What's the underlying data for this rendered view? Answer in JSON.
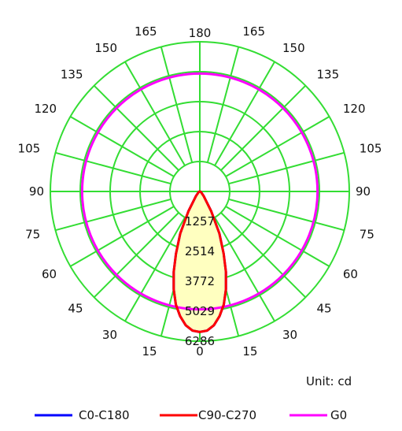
{
  "chart_data": {
    "type": "polar",
    "unit_label": "Unit: cd",
    "radial_ticks": [
      "1257",
      "2514",
      "3772",
      "5029",
      "6286"
    ],
    "radial_tick_values": [
      1257,
      2514,
      3772,
      5029,
      6286
    ],
    "radial_max": 6286,
    "angle_labels": [
      "0",
      "15",
      "30",
      "45",
      "60",
      "75",
      "90",
      "105",
      "120",
      "135",
      "150",
      "165",
      "180"
    ],
    "grid": true,
    "legend_position": "bottom",
    "colors": {
      "grid": "#33dd33",
      "fill": "#ffffc0"
    },
    "series": [
      {
        "name": "C0-C180",
        "color": "#0000ff",
        "angles": [
          0,
          3,
          6,
          9,
          12,
          15,
          18,
          21,
          25,
          30,
          40,
          60,
          90,
          180
        ],
        "values": [
          5900,
          5850,
          5650,
          5300,
          4850,
          4250,
          3550,
          2800,
          1950,
          950,
          250,
          60,
          10,
          0
        ]
      },
      {
        "name": "C90-C270",
        "color": "#ff0000",
        "angles": [
          0,
          3,
          6,
          9,
          12,
          15,
          18,
          21,
          25,
          30,
          40,
          60,
          90,
          180
        ],
        "values": [
          5900,
          5850,
          5650,
          5300,
          4850,
          4250,
          3550,
          2800,
          1950,
          950,
          250,
          60,
          10,
          0
        ]
      },
      {
        "name": "G0",
        "color": "#ff00ff",
        "angles": [
          0,
          30,
          60,
          90,
          120,
          150,
          180
        ],
        "values": [
          4950,
          4950,
          4950,
          4950,
          4950,
          4950,
          4950
        ]
      }
    ]
  }
}
